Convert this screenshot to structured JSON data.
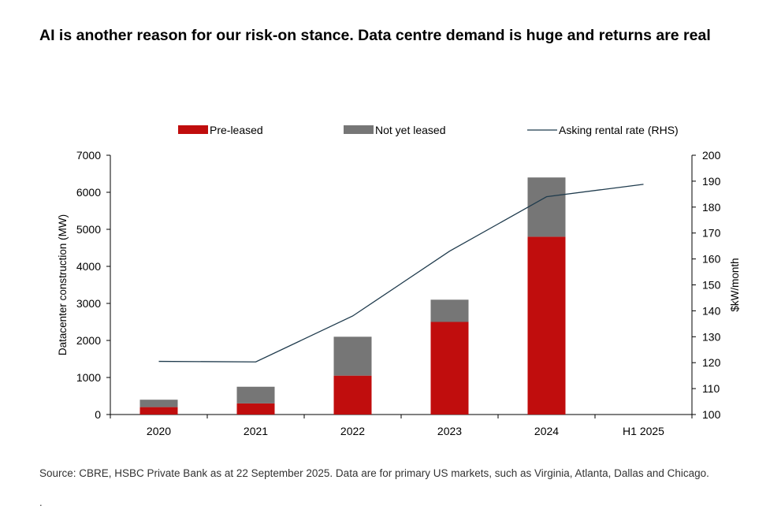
{
  "title": "AI is another reason for our risk-on stance. Data centre demand is huge and returns are real",
  "source": "Source: CBRE, HSBC Private Bank as at 22 September 2025. Data are for primary US markets, such as Virginia, Atlanta, Dallas and Chicago.",
  "footer_mark": ".",
  "chart_data": {
    "type": "bar",
    "stacked": true,
    "categories": [
      "2020",
      "2021",
      "2022",
      "2023",
      "2024",
      "H1 2025"
    ],
    "series": [
      {
        "name": "Pre-leased",
        "type": "bar",
        "axis": "left",
        "color": "#c00d0d",
        "values": [
          200,
          300,
          1050,
          2500,
          4800,
          null
        ]
      },
      {
        "name": "Not yet leased",
        "type": "bar",
        "axis": "left",
        "color": "#767676",
        "values": [
          200,
          450,
          1050,
          600,
          1600,
          null
        ]
      },
      {
        "name": "Asking rental rate (RHS)",
        "type": "line",
        "axis": "right",
        "color": "#1f3b4d",
        "values": [
          120.5,
          120.3,
          138,
          163,
          184,
          188.8
        ]
      }
    ],
    "ylabel": "Datacenter construction (MW)",
    "y2label": "$kW/month",
    "ylim": [
      0,
      7000
    ],
    "y2lim": [
      100,
      200
    ],
    "yticks": [
      "0",
      "1000",
      "2000",
      "3000",
      "4000",
      "5000",
      "6000",
      "7000"
    ],
    "y2ticks": [
      "100",
      "110",
      "120",
      "130",
      "140",
      "150",
      "160",
      "170",
      "180",
      "190",
      "200"
    ],
    "legend_position": "top",
    "grid": false
  }
}
